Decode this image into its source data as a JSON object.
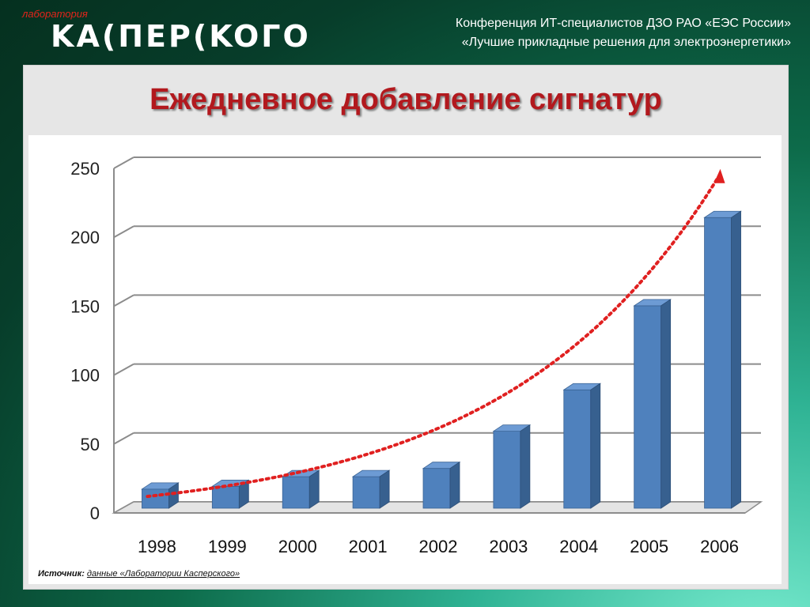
{
  "header": {
    "logo_small": "лаборатория",
    "logo_main": "KA(ПEP(KOГO",
    "conference_line1": "Конференция ИТ-специалистов ДЗО РАО «ЕЭС России»",
    "conference_line2": "«Лучшие прикладные решения для электроэнергетики»"
  },
  "slide": {
    "title": "Ежедневное добавление сигнатур",
    "source_label": "Источник:",
    "source_text": "данные «Лаборатории Касперского»"
  },
  "chart_data": {
    "type": "bar",
    "categories": [
      "1998",
      "1999",
      "2000",
      "2001",
      "2002",
      "2003",
      "2004",
      "2005",
      "2006"
    ],
    "values": [
      15,
      17,
      24,
      24,
      30,
      57,
      87,
      148,
      212
    ],
    "ylim": [
      0,
      250
    ],
    "yticks": [
      "0",
      "50",
      "100",
      "150",
      "200",
      "250"
    ],
    "grid": true,
    "trend_line": true,
    "colors": {
      "bar_front": "#4f81bd",
      "bar_top": "#6d9bd4",
      "bar_side": "#37608f",
      "trend": "#e02020"
    }
  }
}
